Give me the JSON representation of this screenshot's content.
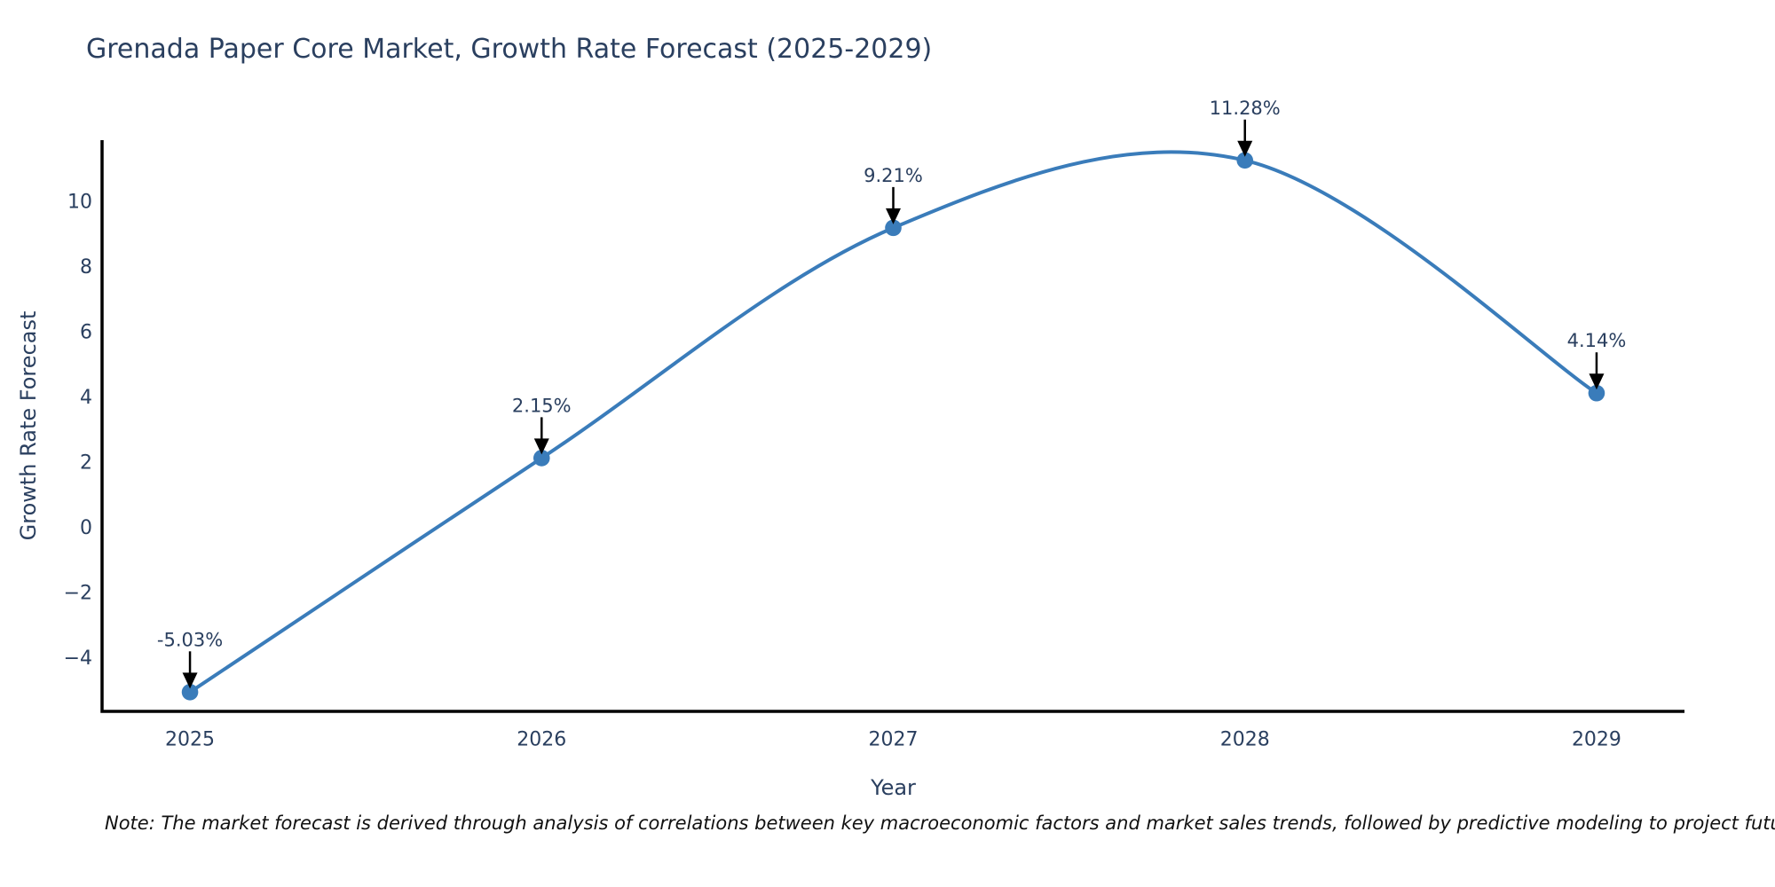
{
  "note": "Note: The market forecast is derived through analysis of correlations between key macroeconomic factors and market sales trends, followed by predictive modeling to project future sales",
  "chart_data": {
    "type": "line",
    "title": "Grenada Paper Core Market, Growth Rate Forecast (2025-2029)",
    "xlabel": "Year",
    "ylabel": "Growth Rate Forecast",
    "line_shape": "spline",
    "grid": false,
    "legend": "none",
    "x": [
      2025,
      2026,
      2027,
      2028,
      2029
    ],
    "series": [
      {
        "name": "Growth Rate Forecast",
        "values": [
          -5.03,
          2.15,
          9.21,
          11.28,
          4.14
        ]
      }
    ],
    "point_labels": [
      "-5.03%",
      "2.15%",
      "9.21%",
      "11.28%",
      "4.14%"
    ],
    "x_tick_labels": [
      "2025",
      "2026",
      "2027",
      "2028",
      "2029"
    ],
    "y_tick_values": [
      10,
      8,
      6,
      4,
      2,
      0,
      -2,
      -4
    ],
    "y_tick_labels": [
      "10",
      "8",
      "6",
      "4",
      "2",
      "0",
      "−2",
      "−4"
    ],
    "xlim": [
      2024.75,
      2029.25
    ],
    "ylim": [
      -5.62,
      11.9
    ],
    "colors": {
      "line": "#3a7cba",
      "marker": "#3a7cba",
      "text": "#2a3f5f",
      "axis": "#000000",
      "arrow": "#000000",
      "note_text": "#111111",
      "background": "#ffffff"
    }
  }
}
